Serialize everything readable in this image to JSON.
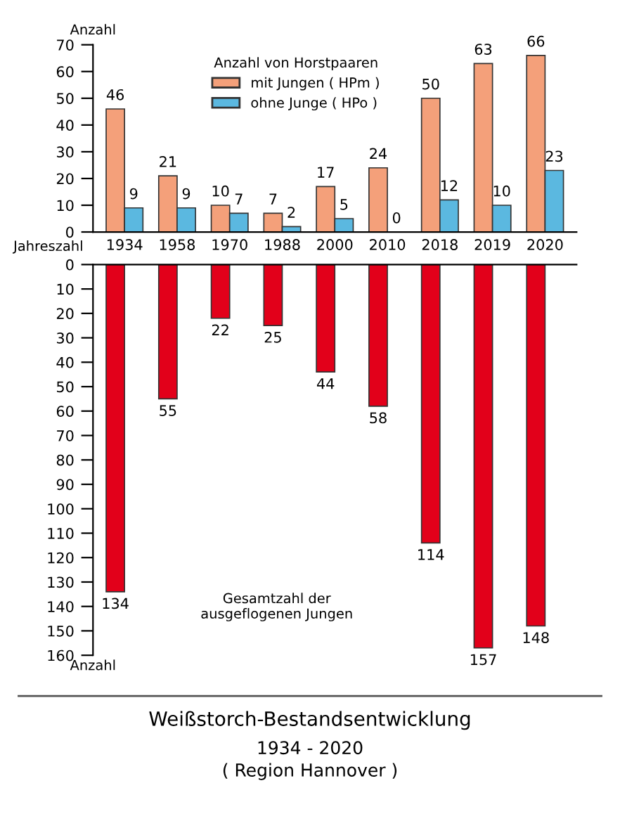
{
  "chart_data": [
    {
      "type": "bar",
      "title": "Weißstorch-Bestandsentwicklung",
      "subtitle": "1934 - 2020\n( Region Hannover )",
      "ylabel": "Anzahl",
      "xlabel": "Jahreszahl",
      "legend_title": "Anzahl von Horstpaaren",
      "categories": [
        "1934",
        "1958",
        "1970",
        "1988",
        "2000",
        "2010",
        "2018",
        "2019",
        "2020"
      ],
      "series": [
        {
          "name": "mit Jungen ( HPm )",
          "color": "#f4a07a",
          "values": [
            46,
            21,
            10,
            7,
            17,
            24,
            50,
            63,
            66
          ]
        },
        {
          "name": "ohne Junge ( HPo )",
          "color": "#5bb8e0",
          "values": [
            9,
            9,
            7,
            2,
            5,
            0,
            12,
            10,
            23
          ]
        }
      ],
      "ylim": [
        0,
        70
      ],
      "yticks": [
        0,
        10,
        20,
        30,
        40,
        50,
        60,
        70
      ],
      "data_labels": true,
      "legend": "top",
      "grid": false
    },
    {
      "type": "bar",
      "ylabel": "Anzahl",
      "annotations": [
        "Gesamtzahl der\nausgeflogenen Jungen"
      ],
      "categories": [
        "1934",
        "1958",
        "1970",
        "1988",
        "2000",
        "2010",
        "2018",
        "2019",
        "2020"
      ],
      "series": [
        {
          "color": "#e2001a",
          "values": [
            134,
            55,
            22,
            25,
            44,
            58,
            114,
            157,
            148
          ]
        }
      ],
      "ylim": [
        160,
        0
      ],
      "yticks": [
        0,
        10,
        20,
        30,
        40,
        50,
        60,
        70,
        80,
        90,
        100,
        110,
        120,
        130,
        140,
        150,
        160
      ],
      "data_labels": true,
      "tick_labels": "y",
      "grid": false
    }
  ]
}
